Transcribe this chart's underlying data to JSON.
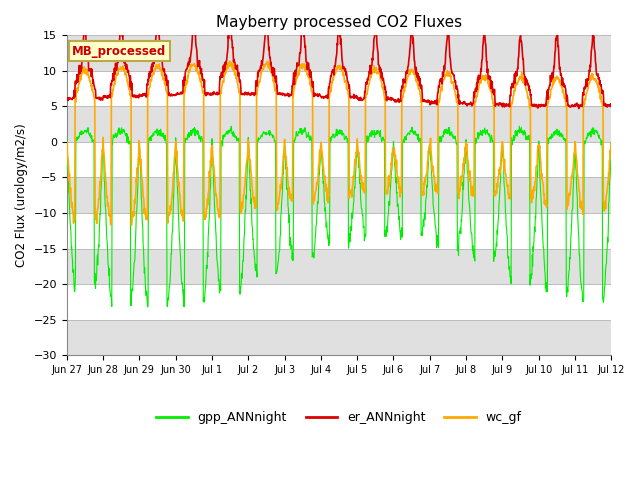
{
  "title": "Mayberry processed CO2 Fluxes",
  "ylabel": "CO2 Flux (urology/m2/s)",
  "ylim": [
    -30,
    15
  ],
  "yticks": [
    -30,
    -25,
    -20,
    -15,
    -10,
    -5,
    0,
    5,
    10,
    15
  ],
  "label_box": "MB_processed",
  "label_box_color": "#ffffcc",
  "label_box_edge": "#bbaa44",
  "label_box_text_color": "#cc0000",
  "line_green": "#00ee00",
  "line_red": "#dd0000",
  "line_orange": "#ffaa00",
  "legend_labels": [
    "gpp_ANNnight",
    "er_ANNnight",
    "wc_gf"
  ],
  "bg_color": "#ffffff",
  "grid_band_color": "#e0e0e0",
  "n_days": 16,
  "points_per_day": 96
}
